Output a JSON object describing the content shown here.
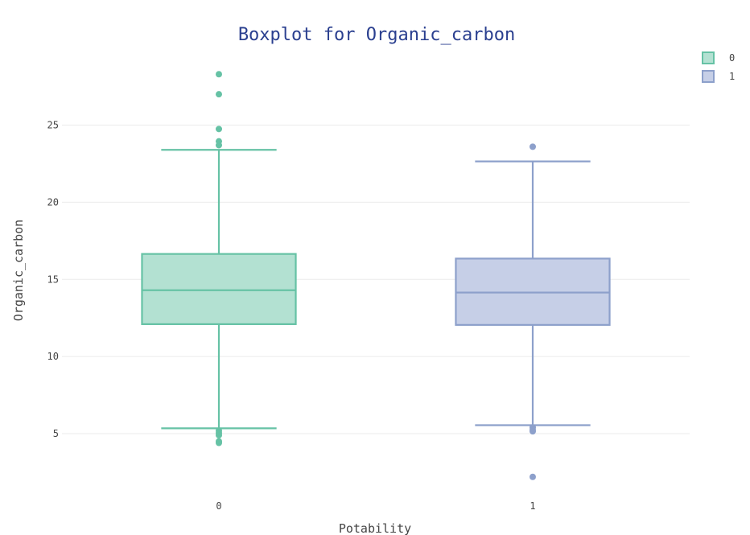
{
  "chart_data": {
    "type": "box",
    "title": "Boxplot for Organic_carbon",
    "xlabel": "Potability",
    "ylabel": "Organic_carbon",
    "ylim": [
      1.3,
      29.2
    ],
    "yticks": [
      5,
      10,
      15,
      20,
      25
    ],
    "grid": true,
    "legend_position": "top-right",
    "categories": [
      "0",
      "1"
    ],
    "series": [
      {
        "name": "0",
        "category": "0",
        "color": "#66c2a5",
        "fill": "#b3e1d2",
        "min": 5.35,
        "q1": 12.1,
        "median": 14.3,
        "q3": 16.65,
        "max": 23.4,
        "outliers": [
          28.3,
          27.0,
          24.75,
          23.95,
          23.7,
          5.2,
          5.05,
          4.9,
          4.5,
          4.4
        ]
      },
      {
        "name": "1",
        "category": "1",
        "color": "#8da0cb",
        "fill": "#c6cfe7",
        "min": 5.55,
        "q1": 12.05,
        "median": 14.15,
        "q3": 16.35,
        "max": 22.65,
        "outliers": [
          23.6,
          5.4,
          5.25,
          5.15,
          2.2
        ]
      }
    ]
  }
}
